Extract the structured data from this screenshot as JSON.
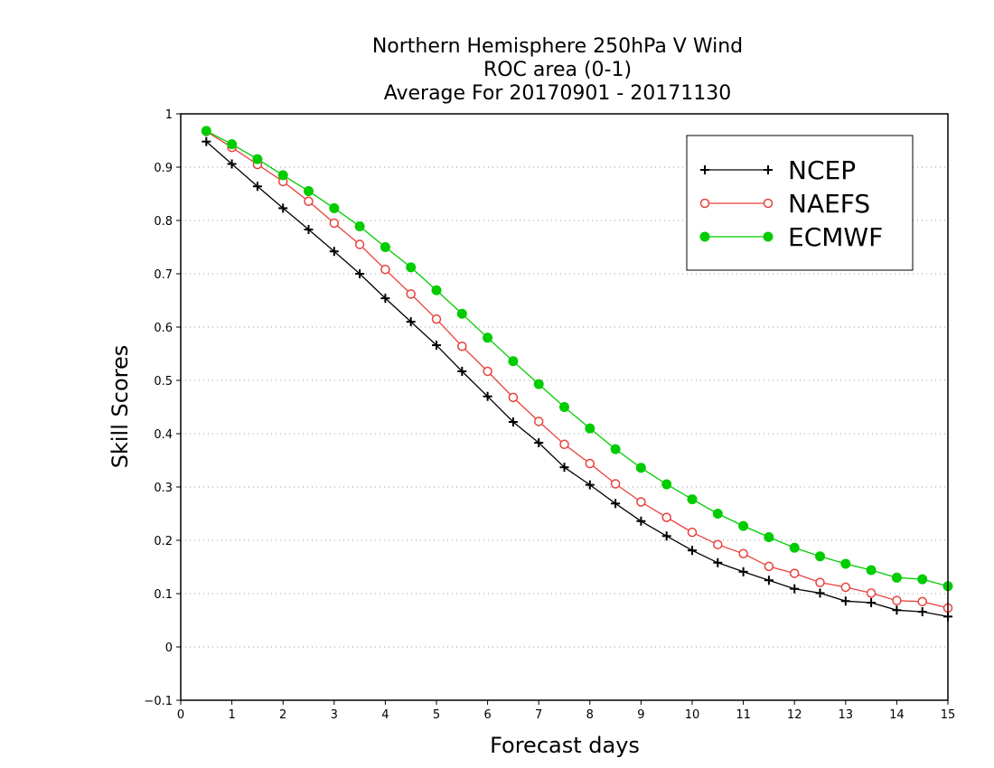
{
  "chart_data": {
    "type": "line",
    "title": [
      "Northern Hemisphere 250hPa V Wind",
      "ROC area (0-1)",
      "Average For 20170901 - 20171130"
    ],
    "xlabel": "Forecast days",
    "ylabel": "Skill Scores",
    "xlim": [
      0,
      15
    ],
    "ylim": [
      -0.1,
      1
    ],
    "x_ticks": [
      "0",
      "1",
      "2",
      "3",
      "4",
      "5",
      "6",
      "7",
      "8",
      "9",
      "10",
      "11",
      "12",
      "13",
      "14",
      "15"
    ],
    "y_ticks": [
      "−0.1",
      "0",
      "0.1",
      "0.2",
      "0.3",
      "0.4",
      "0.5",
      "0.6",
      "0.7",
      "0.8",
      "0.9",
      "1"
    ],
    "grid": "dotted horizontal",
    "legend_position": "top-right",
    "x": [
      0.5,
      1,
      1.5,
      2,
      2.5,
      3,
      3.5,
      4,
      4.5,
      5,
      5.5,
      6,
      6.5,
      7,
      7.5,
      8,
      8.5,
      9,
      9.5,
      10,
      10.5,
      11,
      11.5,
      12,
      12.5,
      13,
      13.5,
      14,
      14.5,
      15
    ],
    "series": [
      {
        "name": "NCEP",
        "color": "#000000",
        "marker": "plus",
        "values": [
          0.948,
          0.906,
          0.864,
          0.823,
          0.783,
          0.742,
          0.7,
          0.654,
          0.61,
          0.566,
          0.517,
          0.47,
          0.422,
          0.383,
          0.337,
          0.304,
          0.269,
          0.236,
          0.208,
          0.181,
          0.158,
          0.141,
          0.125,
          0.109,
          0.101,
          0.086,
          0.083,
          0.069,
          0.066,
          0.057
        ]
      },
      {
        "name": "NAEFS",
        "color": "#e8403c",
        "marker": "open-circle",
        "values": [
          0.967,
          0.937,
          0.905,
          0.873,
          0.836,
          0.795,
          0.755,
          0.708,
          0.662,
          0.615,
          0.564,
          0.517,
          0.468,
          0.423,
          0.38,
          0.344,
          0.306,
          0.272,
          0.243,
          0.215,
          0.192,
          0.175,
          0.151,
          0.138,
          0.121,
          0.112,
          0.101,
          0.087,
          0.085,
          0.073
        ]
      },
      {
        "name": "ECMWF",
        "color": "#00cc00",
        "marker": "filled-circle",
        "values": [
          0.968,
          0.943,
          0.915,
          0.885,
          0.855,
          0.823,
          0.789,
          0.75,
          0.712,
          0.669,
          0.625,
          0.58,
          0.536,
          0.493,
          0.45,
          0.41,
          0.371,
          0.336,
          0.305,
          0.277,
          0.25,
          0.227,
          0.206,
          0.186,
          0.17,
          0.156,
          0.144,
          0.13,
          0.127,
          0.114
        ]
      }
    ]
  }
}
